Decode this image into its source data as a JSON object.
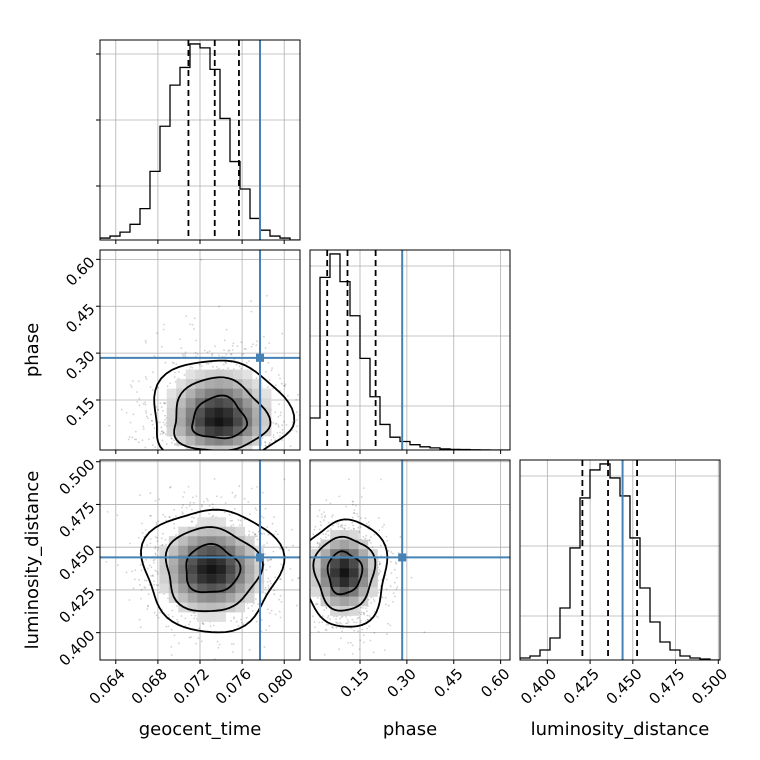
{
  "chart_data": {
    "type": "corner",
    "parameters": [
      {
        "name": "geocent_time",
        "label": "geocent_time",
        "range": [
          0.0625,
          0.0815
        ],
        "ticks": [
          0.064,
          0.068,
          0.072,
          0.076,
          0.08
        ],
        "tick_labels": [
          "0.064",
          "0.068",
          "0.072",
          "0.076",
          "0.080"
        ],
        "truth": 0.0777,
        "quantiles": [
          0.0709,
          0.0734,
          0.0757
        ],
        "histogram": {
          "edges_start": 0.0625,
          "edges_step": 0.00095,
          "counts": [
            1,
            2,
            4,
            8,
            16,
            35,
            58,
            79,
            88,
            100,
            98,
            87,
            62,
            40,
            26,
            11,
            5,
            2,
            1,
            0
          ]
        }
      },
      {
        "name": "phase",
        "label": "phase",
        "range": [
          -0.01,
          0.63
        ],
        "ticks": [
          0.15,
          0.3,
          0.45,
          0.6
        ],
        "tick_labels": [
          "0.15",
          "0.30",
          "0.45",
          "0.60"
        ],
        "truth": 0.285,
        "quantiles": [
          0.045,
          0.11,
          0.2
        ],
        "histogram": {
          "edges_start": -0.01,
          "edges_step": 0.032,
          "counts": [
            15,
            81,
            92,
            79,
            63,
            43,
            25,
            12,
            6,
            4,
            2.5,
            1.5,
            1,
            0.5,
            0.3,
            0.2,
            0.1,
            0.05,
            0,
            0
          ]
        }
      },
      {
        "name": "luminosity_distance",
        "label": "luminosity_distance",
        "range": [
          0.384,
          0.501
        ],
        "ticks": [
          0.4,
          0.425,
          0.45,
          0.475,
          0.5
        ],
        "tick_labels": [
          "0.400",
          "0.425",
          "0.450",
          "0.475",
          "0.500"
        ],
        "truth": 0.444,
        "quantiles": [
          0.4205,
          0.4355,
          0.4525
        ],
        "histogram": {
          "edges_start": 0.384,
          "edges_step": 0.00585,
          "counts": [
            1,
            2,
            5,
            11,
            26,
            56,
            81,
            95,
            98,
            91,
            82,
            61,
            36,
            19,
            9,
            5,
            2,
            1,
            0.5,
            0
          ]
        }
      }
    ],
    "pairs": [
      {
        "x": "geocent_time",
        "y": "phase",
        "peak": [
          0.0738,
          0.08
        ],
        "contour_levels": 3
      },
      {
        "x": "geocent_time",
        "y": "luminosity_distance",
        "peak": [
          0.0731,
          0.437
        ],
        "contour_levels": 3
      },
      {
        "x": "phase",
        "y": "luminosity_distance",
        "peak": [
          0.1,
          0.435
        ],
        "contour_levels": 3
      }
    ],
    "grid": true,
    "truth_color": "#4682b4",
    "scatter_color": "#000000",
    "histogram_color": "#000000"
  }
}
